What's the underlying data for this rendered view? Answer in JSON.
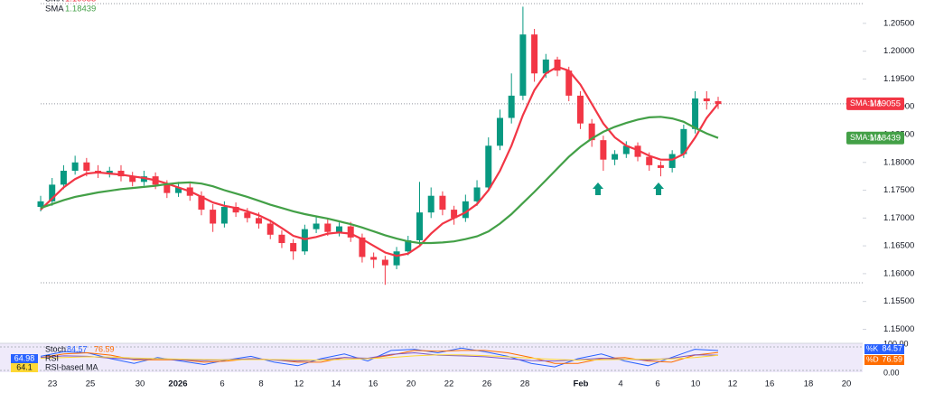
{
  "chart_data": [
    {
      "type": "candlestick",
      "open": [
        1.172,
        1.173,
        1.176,
        1.1785,
        1.18,
        1.1785,
        1.178,
        1.1785,
        1.1775,
        1.1765,
        1.1775,
        1.176,
        1.1745,
        1.1755,
        1.174,
        1.1715,
        1.169,
        1.172,
        1.171,
        1.17,
        1.169,
        1.167,
        1.1655,
        1.164,
        1.168,
        1.169,
        1.1675,
        1.1685,
        1.1665,
        1.163,
        1.1625,
        1.1615,
        1.164,
        1.166,
        1.171,
        1.174,
        1.1715,
        1.17,
        1.173,
        1.1755,
        1.183,
        1.188,
        1.192,
        1.203,
        1.196,
        1.1985,
        1.1965,
        1.192,
        1.187,
        1.184,
        1.1805,
        1.1815,
        1.183,
        1.181,
        1.1795,
        1.179,
        1.1815,
        1.186,
        1.1915,
        1.191
      ],
      "high": [
        1.174,
        1.1772,
        1.1795,
        1.1812,
        1.1808,
        1.1795,
        1.1792,
        1.1795,
        1.1783,
        1.1785,
        1.1782,
        1.1768,
        1.1765,
        1.1762,
        1.1748,
        1.1725,
        1.173,
        1.1728,
        1.1718,
        1.171,
        1.1697,
        1.1678,
        1.1662,
        1.1688,
        1.1702,
        1.1698,
        1.1692,
        1.1693,
        1.1672,
        1.1638,
        1.1632,
        1.1648,
        1.1668,
        1.1765,
        1.1755,
        1.1748,
        1.1722,
        1.1742,
        1.1768,
        1.1845,
        1.1895,
        1.196,
        1.208,
        1.204,
        1.1995,
        1.199,
        1.1972,
        1.1928,
        1.1878,
        1.1848,
        1.1822,
        1.1838,
        1.1836,
        1.1818,
        1.1802,
        1.1822,
        1.1868,
        1.1928,
        1.1928,
        1.1918
      ],
      "low": [
        1.1712,
        1.1722,
        1.1752,
        1.1778,
        1.1775,
        1.1772,
        1.1773,
        1.1766,
        1.1757,
        1.1758,
        1.1752,
        1.1736,
        1.1738,
        1.1731,
        1.1705,
        1.1675,
        1.1683,
        1.1702,
        1.1692,
        1.1681,
        1.1662,
        1.1646,
        1.1625,
        1.1634,
        1.1673,
        1.1668,
        1.1667,
        1.1657,
        1.162,
        1.161,
        1.158,
        1.1608,
        1.1633,
        1.1652,
        1.17,
        1.1705,
        1.1688,
        1.1693,
        1.1722,
        1.1748,
        1.1822,
        1.187,
        1.1912,
        1.1945,
        1.1952,
        1.1955,
        1.191,
        1.186,
        1.1828,
        1.1785,
        1.1795,
        1.1808,
        1.1802,
        1.1785,
        1.1775,
        1.1782,
        1.1808,
        1.1852,
        1.1895,
        1.1896
      ],
      "close": [
        1.173,
        1.176,
        1.1785,
        1.18,
        1.1785,
        1.178,
        1.1785,
        1.1775,
        1.1765,
        1.1775,
        1.176,
        1.1745,
        1.1755,
        1.174,
        1.1715,
        1.169,
        1.172,
        1.171,
        1.17,
        1.169,
        1.167,
        1.1655,
        1.164,
        1.168,
        1.169,
        1.1675,
        1.1685,
        1.1665,
        1.163,
        1.1625,
        1.1615,
        1.164,
        1.166,
        1.171,
        1.174,
        1.1715,
        1.17,
        1.173,
        1.1755,
        1.183,
        1.188,
        1.192,
        1.203,
        1.196,
        1.1985,
        1.1965,
        1.192,
        1.187,
        1.184,
        1.1805,
        1.1815,
        1.183,
        1.181,
        1.1795,
        1.179,
        1.1815,
        1.186,
        1.1915,
        1.191,
        1.1905
      ],
      "up_color": "#089981",
      "down_color": "#f23645",
      "series": [
        {
          "name": "SMA",
          "badge": "SMA:MA",
          "color": "#f23645",
          "values": [
            1.1715,
            1.1735,
            1.1755,
            1.177,
            1.178,
            1.1782,
            1.178,
            1.1778,
            1.1775,
            1.1772,
            1.1768,
            1.1762,
            1.1755,
            1.1748,
            1.1738,
            1.1728,
            1.1722,
            1.1718,
            1.1712,
            1.1705,
            1.1695,
            1.1682,
            1.1668,
            1.1662,
            1.1666,
            1.1672,
            1.1674,
            1.1672,
            1.1662,
            1.165,
            1.1638,
            1.1632,
            1.1636,
            1.165,
            1.1672,
            1.169,
            1.17,
            1.171,
            1.1725,
            1.175,
            1.1785,
            1.183,
            1.1885,
            1.193,
            1.196,
            1.1972,
            1.1965,
            1.194,
            1.1905,
            1.187,
            1.1845,
            1.183,
            1.1822,
            1.1812,
            1.1805,
            1.1805,
            1.1815,
            1.1845,
            1.188,
            1.19055
          ]
        },
        {
          "name": "SMA",
          "badge": "SMA:MA",
          "color": "#43a047",
          "values": [
            1.1718,
            1.1725,
            1.1732,
            1.1738,
            1.1742,
            1.1746,
            1.1749,
            1.1752,
            1.1754,
            1.1756,
            1.1758,
            1.1761,
            1.1763,
            1.1764,
            1.1762,
            1.1757,
            1.175,
            1.1744,
            1.1738,
            1.1731,
            1.1724,
            1.1718,
            1.1712,
            1.1707,
            1.1703,
            1.1699,
            1.1694,
            1.1689,
            1.1683,
            1.1676,
            1.1669,
            1.1663,
            1.1658,
            1.1655,
            1.1655,
            1.1656,
            1.1658,
            1.1662,
            1.1667,
            1.1676,
            1.169,
            1.1707,
            1.1727,
            1.1747,
            1.1768,
            1.1789,
            1.181,
            1.1828,
            1.1843,
            1.1855,
            1.1864,
            1.1871,
            1.1877,
            1.1881,
            1.1882,
            1.1879,
            1.1873,
            1.1862,
            1.1852,
            1.18439
          ]
        }
      ],
      "ylim": [
        1.1478,
        1.2092
      ],
      "yticks": [
        {
          "value": 1.15,
          "label": "1.15000"
        },
        {
          "value": 1.155,
          "label": "1.15500"
        },
        {
          "value": 1.16,
          "label": "1.16000"
        },
        {
          "value": 1.165,
          "label": "1.16500"
        },
        {
          "value": 1.17,
          "label": "1.17000"
        },
        {
          "value": 1.175,
          "label": "1.17500"
        },
        {
          "value": 1.18,
          "label": "1.18000"
        },
        {
          "value": 1.185,
          "label": "1.18500"
        },
        {
          "value": 1.19,
          "label": "1.19000"
        },
        {
          "value": 1.195,
          "label": "1.19500"
        },
        {
          "value": 1.2,
          "label": "1.20000"
        },
        {
          "value": 1.205,
          "label": "1.20500"
        }
      ],
      "xlabels": [
        "23",
        "25",
        "30",
        "2026",
        "6",
        "8",
        "12",
        "14",
        "16",
        "20",
        "22",
        "26",
        "28",
        "Feb",
        "4",
        "6",
        "10",
        "12",
        "16",
        "18",
        "20"
      ]
    },
    {
      "type": "line",
      "title": "Stoch",
      "series": [
        {
          "name": "%K",
          "color": "#2962ff",
          "values": [
            60,
            80,
            75,
            50,
            30,
            55,
            40,
            25,
            45,
            60,
            35,
            20,
            50,
            70,
            40,
            85,
            90,
            75,
            95,
            80,
            60,
            30,
            15,
            50,
            70,
            40,
            20,
            55,
            90,
            84.57
          ]
        },
        {
          "name": "%D",
          "color": "#ff6d00",
          "values": [
            55,
            70,
            75,
            65,
            45,
            45,
            45,
            35,
            40,
            50,
            45,
            35,
            35,
            55,
            50,
            65,
            85,
            82,
            85,
            85,
            75,
            55,
            30,
            30,
            50,
            55,
            40,
            35,
            65,
            76.59
          ]
        },
        {
          "name": "RSI",
          "color": "#7e57c2",
          "values": [
            55,
            62,
            60,
            52,
            48,
            50,
            45,
            42,
            46,
            50,
            44,
            40,
            45,
            55,
            52,
            68,
            75,
            65,
            62,
            58,
            50,
            42,
            40,
            45,
            52,
            48,
            44,
            52,
            66,
            64.98
          ]
        },
        {
          "name": "RSI-based MA",
          "color": "#fdd835",
          "values": [
            52,
            55,
            58,
            57,
            53,
            50,
            48,
            46,
            45,
            46,
            46,
            45,
            44,
            47,
            50,
            55,
            62,
            66,
            66,
            63,
            58,
            52,
            47,
            44,
            45,
            47,
            48,
            49,
            55,
            64.1
          ]
        }
      ],
      "ylim": [
        0,
        100
      ],
      "yticks": [
        {
          "value": 0,
          "label": "0.00"
        },
        {
          "value": 100,
          "label": "100.00"
        }
      ]
    }
  ]
}
